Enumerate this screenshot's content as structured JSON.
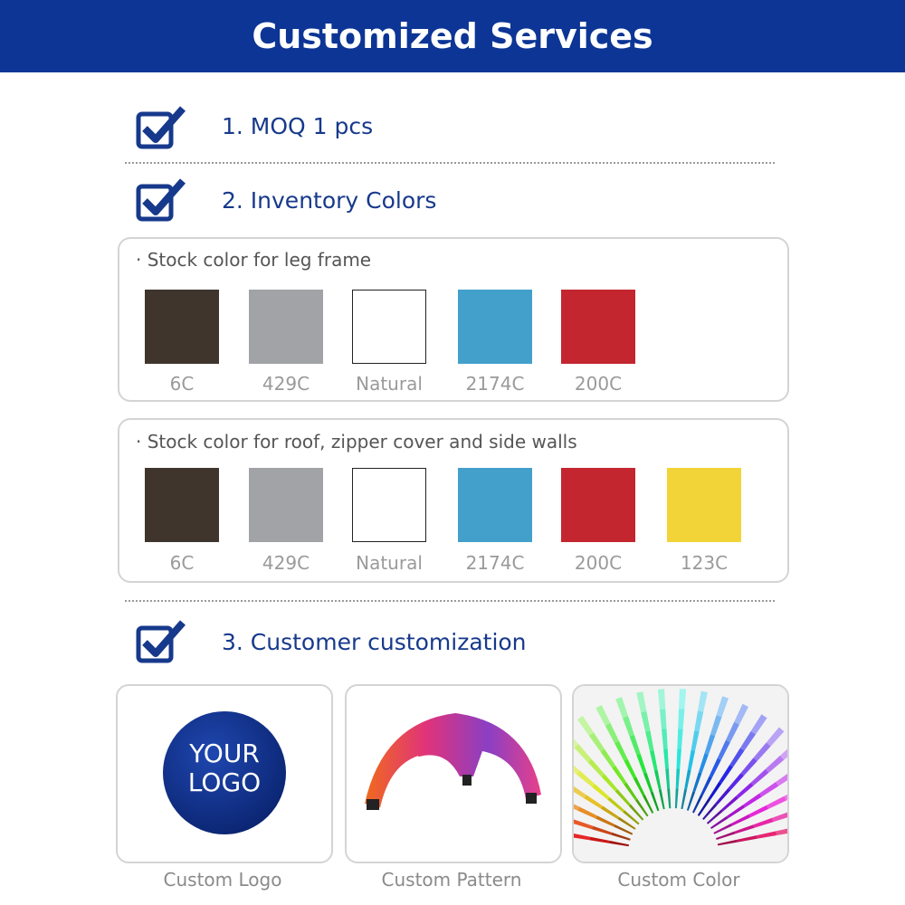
{
  "header": {
    "title": "Customized Services"
  },
  "items": [
    {
      "label": "1. MOQ  1 pcs"
    },
    {
      "label": "2. Inventory Colors"
    },
    {
      "label": "3. Customer customization"
    }
  ],
  "groups": [
    {
      "label": "· Stock color for leg frame",
      "swatches": [
        {
          "name": "6C",
          "color": "#3f352d"
        },
        {
          "name": "429C",
          "color": "#a1a3a6"
        },
        {
          "name": "Natural",
          "color": "#ffffff"
        },
        {
          "name": "2174C",
          "color": "#43a0cb"
        },
        {
          "name": "200C",
          "color": "#c3262f"
        }
      ]
    },
    {
      "label": "· Stock color for roof, zipper cover and side walls",
      "swatches": [
        {
          "name": "6C",
          "color": "#3f352d"
        },
        {
          "name": "429C",
          "color": "#a1a3a6"
        },
        {
          "name": "Natural",
          "color": "#ffffff"
        },
        {
          "name": "2174C",
          "color": "#43a0cb"
        },
        {
          "name": "200C",
          "color": "#c3262f"
        },
        {
          "name": "123C",
          "color": "#f2d438"
        }
      ]
    }
  ],
  "cards": [
    {
      "caption": "Custom Logo",
      "logo_lines": [
        "YOUR",
        "LOGO"
      ]
    },
    {
      "caption": "Custom Pattern"
    },
    {
      "caption": "Custom Color"
    }
  ]
}
